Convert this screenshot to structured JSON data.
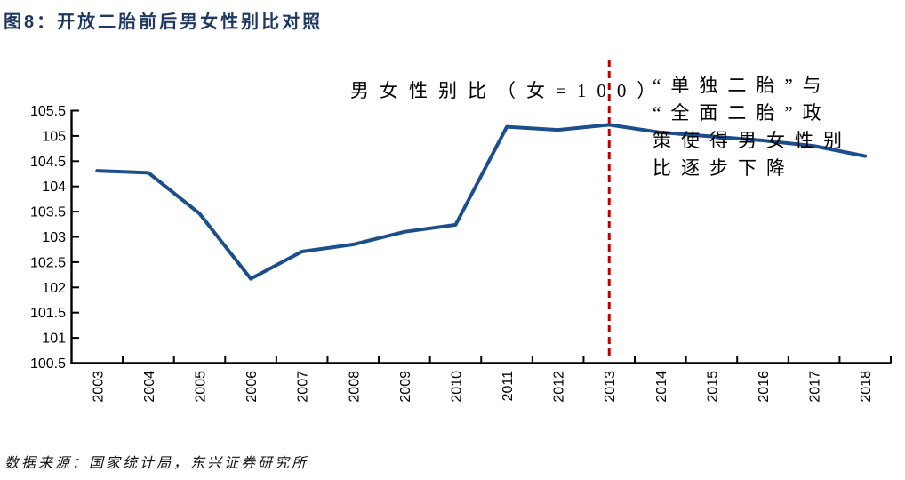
{
  "figure": {
    "title": "图8：开放二胎前后男女性别比对照",
    "source": "数据来源：国家统计局，东兴证券研究所"
  },
  "chart_data": {
    "type": "line",
    "title": "男女性别比（女=100）",
    "categories": [
      "2003",
      "2004",
      "2005",
      "2006",
      "2007",
      "2008",
      "2009",
      "2010",
      "2011",
      "2012",
      "2013",
      "2014",
      "2015",
      "2016",
      "2017",
      "2018"
    ],
    "series": [
      {
        "name": "男女性别比（女=100）",
        "values": [
          104.31,
          104.27,
          103.46,
          102.17,
          102.71,
          102.85,
          103.1,
          103.24,
          105.18,
          105.12,
          105.22,
          105.07,
          104.99,
          104.91,
          104.8,
          104.6
        ]
      }
    ],
    "ylim": [
      100.5,
      105.5
    ],
    "ytick_step": 0.5,
    "xlabel": "",
    "ylabel": "",
    "grid": false,
    "legend_position": "none",
    "x_labels_rotated_deg": -90,
    "annotation": {
      "text": "“单独二胎”与\n“全面二胎”政\n策使得男女性别\n比逐步下降",
      "marker_line_x": "2013"
    },
    "colors": {
      "line": "#1B4F8C",
      "policy_line": "#C00000",
      "axis": "#000000",
      "title": "#1F3864"
    }
  }
}
